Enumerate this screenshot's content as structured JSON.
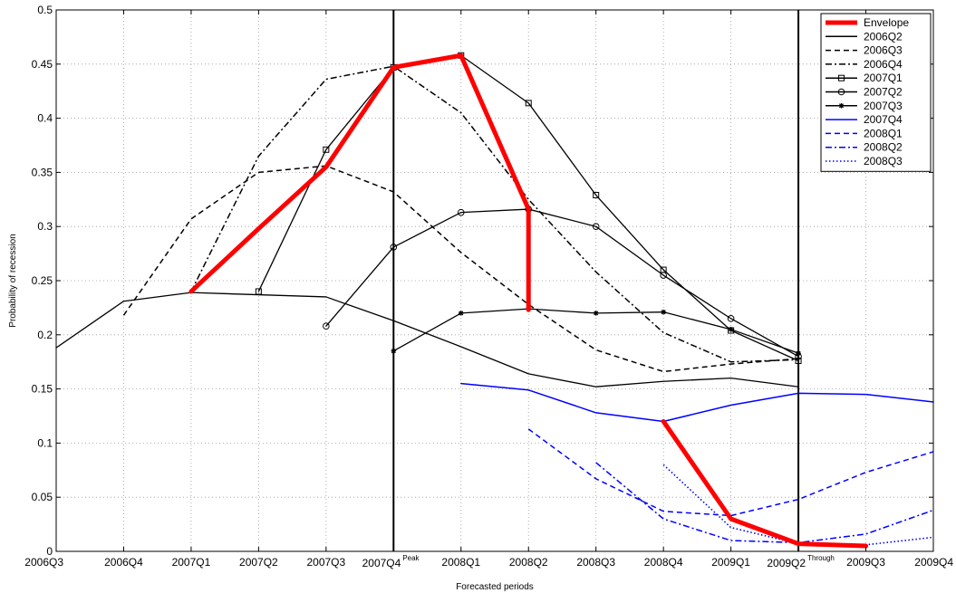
{
  "chart_data": {
    "type": "line",
    "xlabel": "Forecasted periods",
    "ylabel": "Probability of recession",
    "categories": [
      "2006Q3",
      "2006Q4",
      "2007Q1",
      "2007Q2",
      "2007Q3",
      "2007Q4",
      "2008Q1",
      "2008Q2",
      "2008Q3",
      "2008Q4",
      "2009Q1",
      "2009Q2",
      "2009Q3",
      "2009Q4"
    ],
    "ylim": [
      0,
      0.5
    ],
    "yticks": [
      0,
      0.05,
      0.1,
      0.15,
      0.2,
      0.25,
      0.3,
      0.35,
      0.4,
      0.45,
      0.5
    ],
    "ytick_labels": [
      "0",
      "0.05",
      "0.1",
      "0.15",
      "0.2",
      "0.25",
      "0.3",
      "0.35",
      "0.4",
      "0.45",
      "0.5"
    ],
    "grid": true,
    "legend_position": "top-right",
    "annotations": [
      {
        "category": "2007Q4",
        "text": "Peak"
      },
      {
        "category": "2009Q2",
        "text": "Through"
      }
    ],
    "series": [
      {
        "name": "Envelope",
        "color": "#ff0000",
        "style": "thick",
        "points": [
          [
            2,
            0.24
          ],
          [
            3,
            0.298
          ],
          [
            4,
            0.355
          ],
          [
            5,
            0.447
          ],
          [
            6,
            0.458
          ],
          [
            7,
            0.316
          ],
          [
            7,
            0.223
          ]
        ]
      },
      {
        "name": "Envelope-part2",
        "color": "#ff0000",
        "style": "thick",
        "points": [
          [
            9,
            0.12
          ],
          [
            10,
            0.03
          ],
          [
            11,
            0.007
          ],
          [
            12,
            0.005
          ]
        ]
      },
      {
        "name": "2006Q2",
        "color": "#000000",
        "style": "solid",
        "marker": "none",
        "points": [
          [
            0,
            0.188
          ],
          [
            1,
            0.231
          ],
          [
            2,
            0.239
          ],
          [
            3,
            0.237
          ],
          [
            4,
            0.235
          ],
          [
            5,
            0.213
          ],
          [
            6,
            0.189
          ],
          [
            7,
            0.164
          ],
          [
            8,
            0.152
          ],
          [
            9,
            0.157
          ],
          [
            10,
            0.16
          ],
          [
            11,
            0.152
          ]
        ]
      },
      {
        "name": "2006Q3",
        "color": "#000000",
        "style": "dashed",
        "marker": "none",
        "points": [
          [
            1,
            0.218
          ],
          [
            2,
            0.307
          ],
          [
            3,
            0.35
          ],
          [
            4,
            0.356
          ],
          [
            5,
            0.332
          ],
          [
            6,
            0.276
          ],
          [
            7,
            0.228
          ],
          [
            8,
            0.186
          ],
          [
            9,
            0.166
          ],
          [
            10,
            0.173
          ],
          [
            11,
            0.178
          ]
        ]
      },
      {
        "name": "2006Q4",
        "color": "#000000",
        "style": "dashdot",
        "marker": "none",
        "points": [
          [
            2,
            0.24
          ],
          [
            3,
            0.365
          ],
          [
            4,
            0.436
          ],
          [
            5,
            0.448
          ],
          [
            6,
            0.405
          ],
          [
            7,
            0.325
          ],
          [
            8,
            0.258
          ],
          [
            9,
            0.202
          ],
          [
            10,
            0.175
          ],
          [
            11,
            0.177
          ]
        ]
      },
      {
        "name": "2007Q1",
        "color": "#000000",
        "style": "solid",
        "marker": "square",
        "points": [
          [
            3,
            0.24
          ],
          [
            4,
            0.371
          ],
          [
            5,
            0.447
          ],
          [
            6,
            0.458
          ],
          [
            7,
            0.414
          ],
          [
            8,
            0.329
          ],
          [
            9,
            0.26
          ],
          [
            10,
            0.204
          ],
          [
            11,
            0.176
          ]
        ]
      },
      {
        "name": "2007Q2",
        "color": "#000000",
        "style": "solid",
        "marker": "circle",
        "points": [
          [
            4,
            0.208
          ],
          [
            5,
            0.281
          ],
          [
            6,
            0.313
          ],
          [
            7,
            0.316
          ],
          [
            8,
            0.3
          ],
          [
            9,
            0.255
          ],
          [
            10,
            0.215
          ],
          [
            11,
            0.18
          ]
        ]
      },
      {
        "name": "2007Q3",
        "color": "#000000",
        "style": "solid",
        "marker": "star",
        "points": [
          [
            5,
            0.185
          ],
          [
            6,
            0.22
          ],
          [
            7,
            0.224
          ],
          [
            8,
            0.22
          ],
          [
            9,
            0.221
          ],
          [
            10,
            0.205
          ],
          [
            11,
            0.183
          ]
        ]
      },
      {
        "name": "2007Q4",
        "color": "#0000ff",
        "style": "solid",
        "marker": "none",
        "points": [
          [
            6,
            0.155
          ],
          [
            7,
            0.149
          ],
          [
            8,
            0.128
          ],
          [
            9,
            0.12
          ],
          [
            10,
            0.135
          ],
          [
            11,
            0.146
          ],
          [
            12,
            0.145
          ],
          [
            13,
            0.138
          ]
        ]
      },
      {
        "name": "2008Q1",
        "color": "#0000ff",
        "style": "dashed",
        "marker": "none",
        "points": [
          [
            7,
            0.113
          ],
          [
            8,
            0.067
          ],
          [
            9,
            0.037
          ],
          [
            10,
            0.033
          ],
          [
            11,
            0.048
          ],
          [
            12,
            0.073
          ],
          [
            13,
            0.092
          ]
        ]
      },
      {
        "name": "2008Q2",
        "color": "#0000ff",
        "style": "dashdot",
        "marker": "none",
        "points": [
          [
            8,
            0.082
          ],
          [
            9,
            0.03
          ],
          [
            10,
            0.01
          ],
          [
            11,
            0.008
          ],
          [
            12,
            0.016
          ],
          [
            13,
            0.038
          ]
        ]
      },
      {
        "name": "2008Q3",
        "color": "#0000ff",
        "style": "dotted",
        "marker": "none",
        "points": [
          [
            9,
            0.08
          ],
          [
            10,
            0.022
          ],
          [
            11,
            0.007
          ],
          [
            12,
            0.006
          ],
          [
            13,
            0.013
          ]
        ]
      }
    ],
    "legend": [
      "Envelope",
      "2006Q2",
      "2006Q3",
      "2006Q4",
      "2007Q1",
      "2007Q2",
      "2007Q3",
      "2007Q4",
      "2008Q1",
      "2008Q2",
      "2008Q3"
    ]
  }
}
